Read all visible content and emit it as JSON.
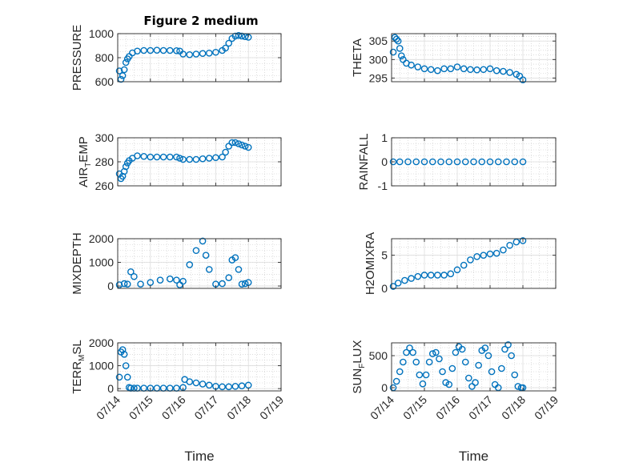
{
  "figure": {
    "title": "Figure 2 medium",
    "marker_color": "#0072bd",
    "x_tick_labels": [
      "07/14",
      "07/15",
      "07/16",
      "07/17",
      "07/18",
      "07/19"
    ]
  },
  "chart_data": [
    {
      "type": "scatter",
      "ylabel": "PRESSURE",
      "xlabel": "",
      "title": "Figure 2 medium",
      "xlim": [
        0,
        5
      ],
      "ylim": [
        600,
        1000
      ],
      "yticks": [
        600,
        800,
        1000
      ],
      "grid": true,
      "x": [
        0.05,
        0.1,
        0.15,
        0.2,
        0.25,
        0.3,
        0.35,
        0.45,
        0.6,
        0.8,
        1.0,
        1.2,
        1.4,
        1.6,
        1.8,
        1.9,
        2.0,
        2.2,
        2.4,
        2.6,
        2.8,
        3.0,
        3.2,
        3.3,
        3.4,
        3.5,
        3.6,
        3.7,
        3.8,
        3.9,
        4.0
      ],
      "y": [
        690,
        620,
        650,
        700,
        760,
        790,
        810,
        840,
        855,
        860,
        860,
        862,
        860,
        860,
        858,
        855,
        830,
        825,
        830,
        835,
        838,
        845,
        860,
        880,
        920,
        960,
        980,
        985,
        980,
        975,
        970
      ]
    },
    {
      "type": "scatter",
      "ylabel": "THETA",
      "xlabel": "",
      "xlim": [
        0,
        5
      ],
      "ylim": [
        294,
        307
      ],
      "yticks": [
        295,
        300,
        305
      ],
      "grid": true,
      "x": [
        0.05,
        0.1,
        0.15,
        0.2,
        0.25,
        0.3,
        0.35,
        0.45,
        0.6,
        0.8,
        1.0,
        1.2,
        1.4,
        1.6,
        1.8,
        2.0,
        2.2,
        2.4,
        2.6,
        2.8,
        3.0,
        3.2,
        3.4,
        3.6,
        3.8,
        3.9,
        4.0
      ],
      "y": [
        302,
        306,
        305.5,
        305,
        303,
        301,
        300,
        299,
        298.5,
        298,
        297.5,
        297.3,
        297,
        297.5,
        297.5,
        298,
        297.5,
        297.3,
        297.2,
        297.3,
        297.5,
        297,
        296.8,
        296.5,
        296,
        295.5,
        294.5
      ]
    },
    {
      "type": "scatter",
      "ylabel": "AIR_TEMP",
      "xlabel": "",
      "xlim": [
        0,
        5
      ],
      "ylim": [
        260,
        300
      ],
      "yticks": [
        260,
        280,
        300
      ],
      "grid": true,
      "x": [
        0.05,
        0.1,
        0.15,
        0.2,
        0.25,
        0.3,
        0.35,
        0.45,
        0.6,
        0.8,
        1.0,
        1.2,
        1.4,
        1.6,
        1.8,
        1.9,
        2.0,
        2.2,
        2.4,
        2.6,
        2.8,
        3.0,
        3.2,
        3.3,
        3.4,
        3.5,
        3.6,
        3.7,
        3.8,
        3.9,
        4.0
      ],
      "y": [
        270,
        266,
        268,
        272,
        276,
        279,
        281,
        283,
        285,
        284.5,
        284,
        284,
        284,
        284,
        284,
        283,
        282,
        282,
        282,
        282.5,
        283,
        283.5,
        284,
        288,
        293,
        296,
        296,
        295,
        294,
        293,
        292
      ]
    },
    {
      "type": "scatter",
      "ylabel": "RAINFALL",
      "xlabel": "",
      "xlim": [
        0,
        5
      ],
      "ylim": [
        -1,
        1
      ],
      "yticks": [
        -1,
        0,
        1
      ],
      "grid": true,
      "x": [
        0.05,
        0.25,
        0.5,
        0.75,
        1.0,
        1.25,
        1.5,
        1.75,
        2.0,
        2.25,
        2.5,
        2.75,
        3.0,
        3.25,
        3.5,
        3.75,
        4.0
      ],
      "y": [
        0,
        0,
        0,
        0,
        0,
        0,
        0,
        0,
        0,
        0,
        0,
        0,
        0,
        0,
        0,
        0,
        0
      ]
    },
    {
      "type": "scatter",
      "ylabel": "MIXDEPTH",
      "xlabel": "",
      "xlim": [
        0,
        5
      ],
      "ylim": [
        -100,
        2000
      ],
      "yticks": [
        0,
        1000,
        2000
      ],
      "grid": true,
      "x": [
        0.05,
        0.2,
        0.3,
        0.4,
        0.5,
        0.7,
        1.0,
        1.3,
        1.6,
        1.8,
        1.9,
        2.0,
        2.2,
        2.4,
        2.6,
        2.7,
        2.8,
        3.0,
        3.2,
        3.4,
        3.5,
        3.6,
        3.7,
        3.8,
        3.9,
        4.0
      ],
      "y": [
        50,
        100,
        80,
        600,
        400,
        80,
        150,
        250,
        300,
        250,
        50,
        200,
        900,
        1500,
        1900,
        1300,
        700,
        80,
        100,
        350,
        1100,
        1200,
        700,
        80,
        100,
        150
      ]
    },
    {
      "type": "scatter",
      "ylabel": "H2OMIXRA",
      "xlabel": "",
      "xlim": [
        0,
        5
      ],
      "ylim": [
        0,
        7.5
      ],
      "yticks": [
        0,
        5
      ],
      "grid": true,
      "x": [
        0.05,
        0.2,
        0.4,
        0.6,
        0.8,
        1.0,
        1.2,
        1.4,
        1.6,
        1.8,
        2.0,
        2.2,
        2.4,
        2.6,
        2.8,
        3.0,
        3.2,
        3.4,
        3.6,
        3.8,
        4.0
      ],
      "y": [
        0.3,
        0.8,
        1.2,
        1.5,
        1.8,
        2.0,
        2.0,
        2.0,
        2.0,
        2.2,
        2.8,
        3.5,
        4.3,
        4.8,
        5.0,
        5.2,
        5.3,
        5.8,
        6.5,
        7.0,
        7.2
      ]
    },
    {
      "type": "scatter",
      "ylabel": "TERR_MSL",
      "xlabel": "Time",
      "xlim": [
        0,
        5
      ],
      "ylim": [
        -100,
        2000
      ],
      "yticks": [
        0,
        1000,
        2000
      ],
      "grid": true,
      "x": [
        0.05,
        0.1,
        0.15,
        0.2,
        0.25,
        0.3,
        0.35,
        0.4,
        0.5,
        0.6,
        0.8,
        1.0,
        1.2,
        1.4,
        1.6,
        1.8,
        2.0,
        2.05,
        2.2,
        2.4,
        2.6,
        2.8,
        3.0,
        3.2,
        3.4,
        3.6,
        3.8,
        4.0
      ],
      "y": [
        500,
        1600,
        1700,
        1500,
        1000,
        500,
        50,
        20,
        20,
        20,
        20,
        20,
        20,
        20,
        20,
        20,
        50,
        400,
        300,
        250,
        200,
        150,
        100,
        80,
        80,
        100,
        120,
        150
      ]
    },
    {
      "type": "scatter",
      "ylabel": "SUN_FLUX",
      "xlabel": "Time",
      "xlim": [
        0,
        5
      ],
      "ylim": [
        -50,
        700
      ],
      "yticks": [
        0,
        500
      ],
      "grid": true,
      "x": [
        0.05,
        0.15,
        0.25,
        0.35,
        0.45,
        0.55,
        0.65,
        0.75,
        0.85,
        0.95,
        1.05,
        1.15,
        1.25,
        1.35,
        1.45,
        1.55,
        1.65,
        1.75,
        1.85,
        1.95,
        2.05,
        2.15,
        2.25,
        2.35,
        2.45,
        2.55,
        2.65,
        2.75,
        2.85,
        2.95,
        3.05,
        3.15,
        3.25,
        3.35,
        3.45,
        3.55,
        3.65,
        3.75,
        3.85,
        3.95,
        4.0
      ],
      "y": [
        0,
        100,
        250,
        400,
        550,
        620,
        550,
        400,
        200,
        60,
        200,
        400,
        530,
        550,
        450,
        250,
        80,
        50,
        300,
        550,
        640,
        600,
        400,
        150,
        20,
        80,
        350,
        580,
        620,
        500,
        250,
        50,
        0,
        300,
        600,
        670,
        500,
        200,
        20,
        0,
        0
      ]
    }
  ]
}
